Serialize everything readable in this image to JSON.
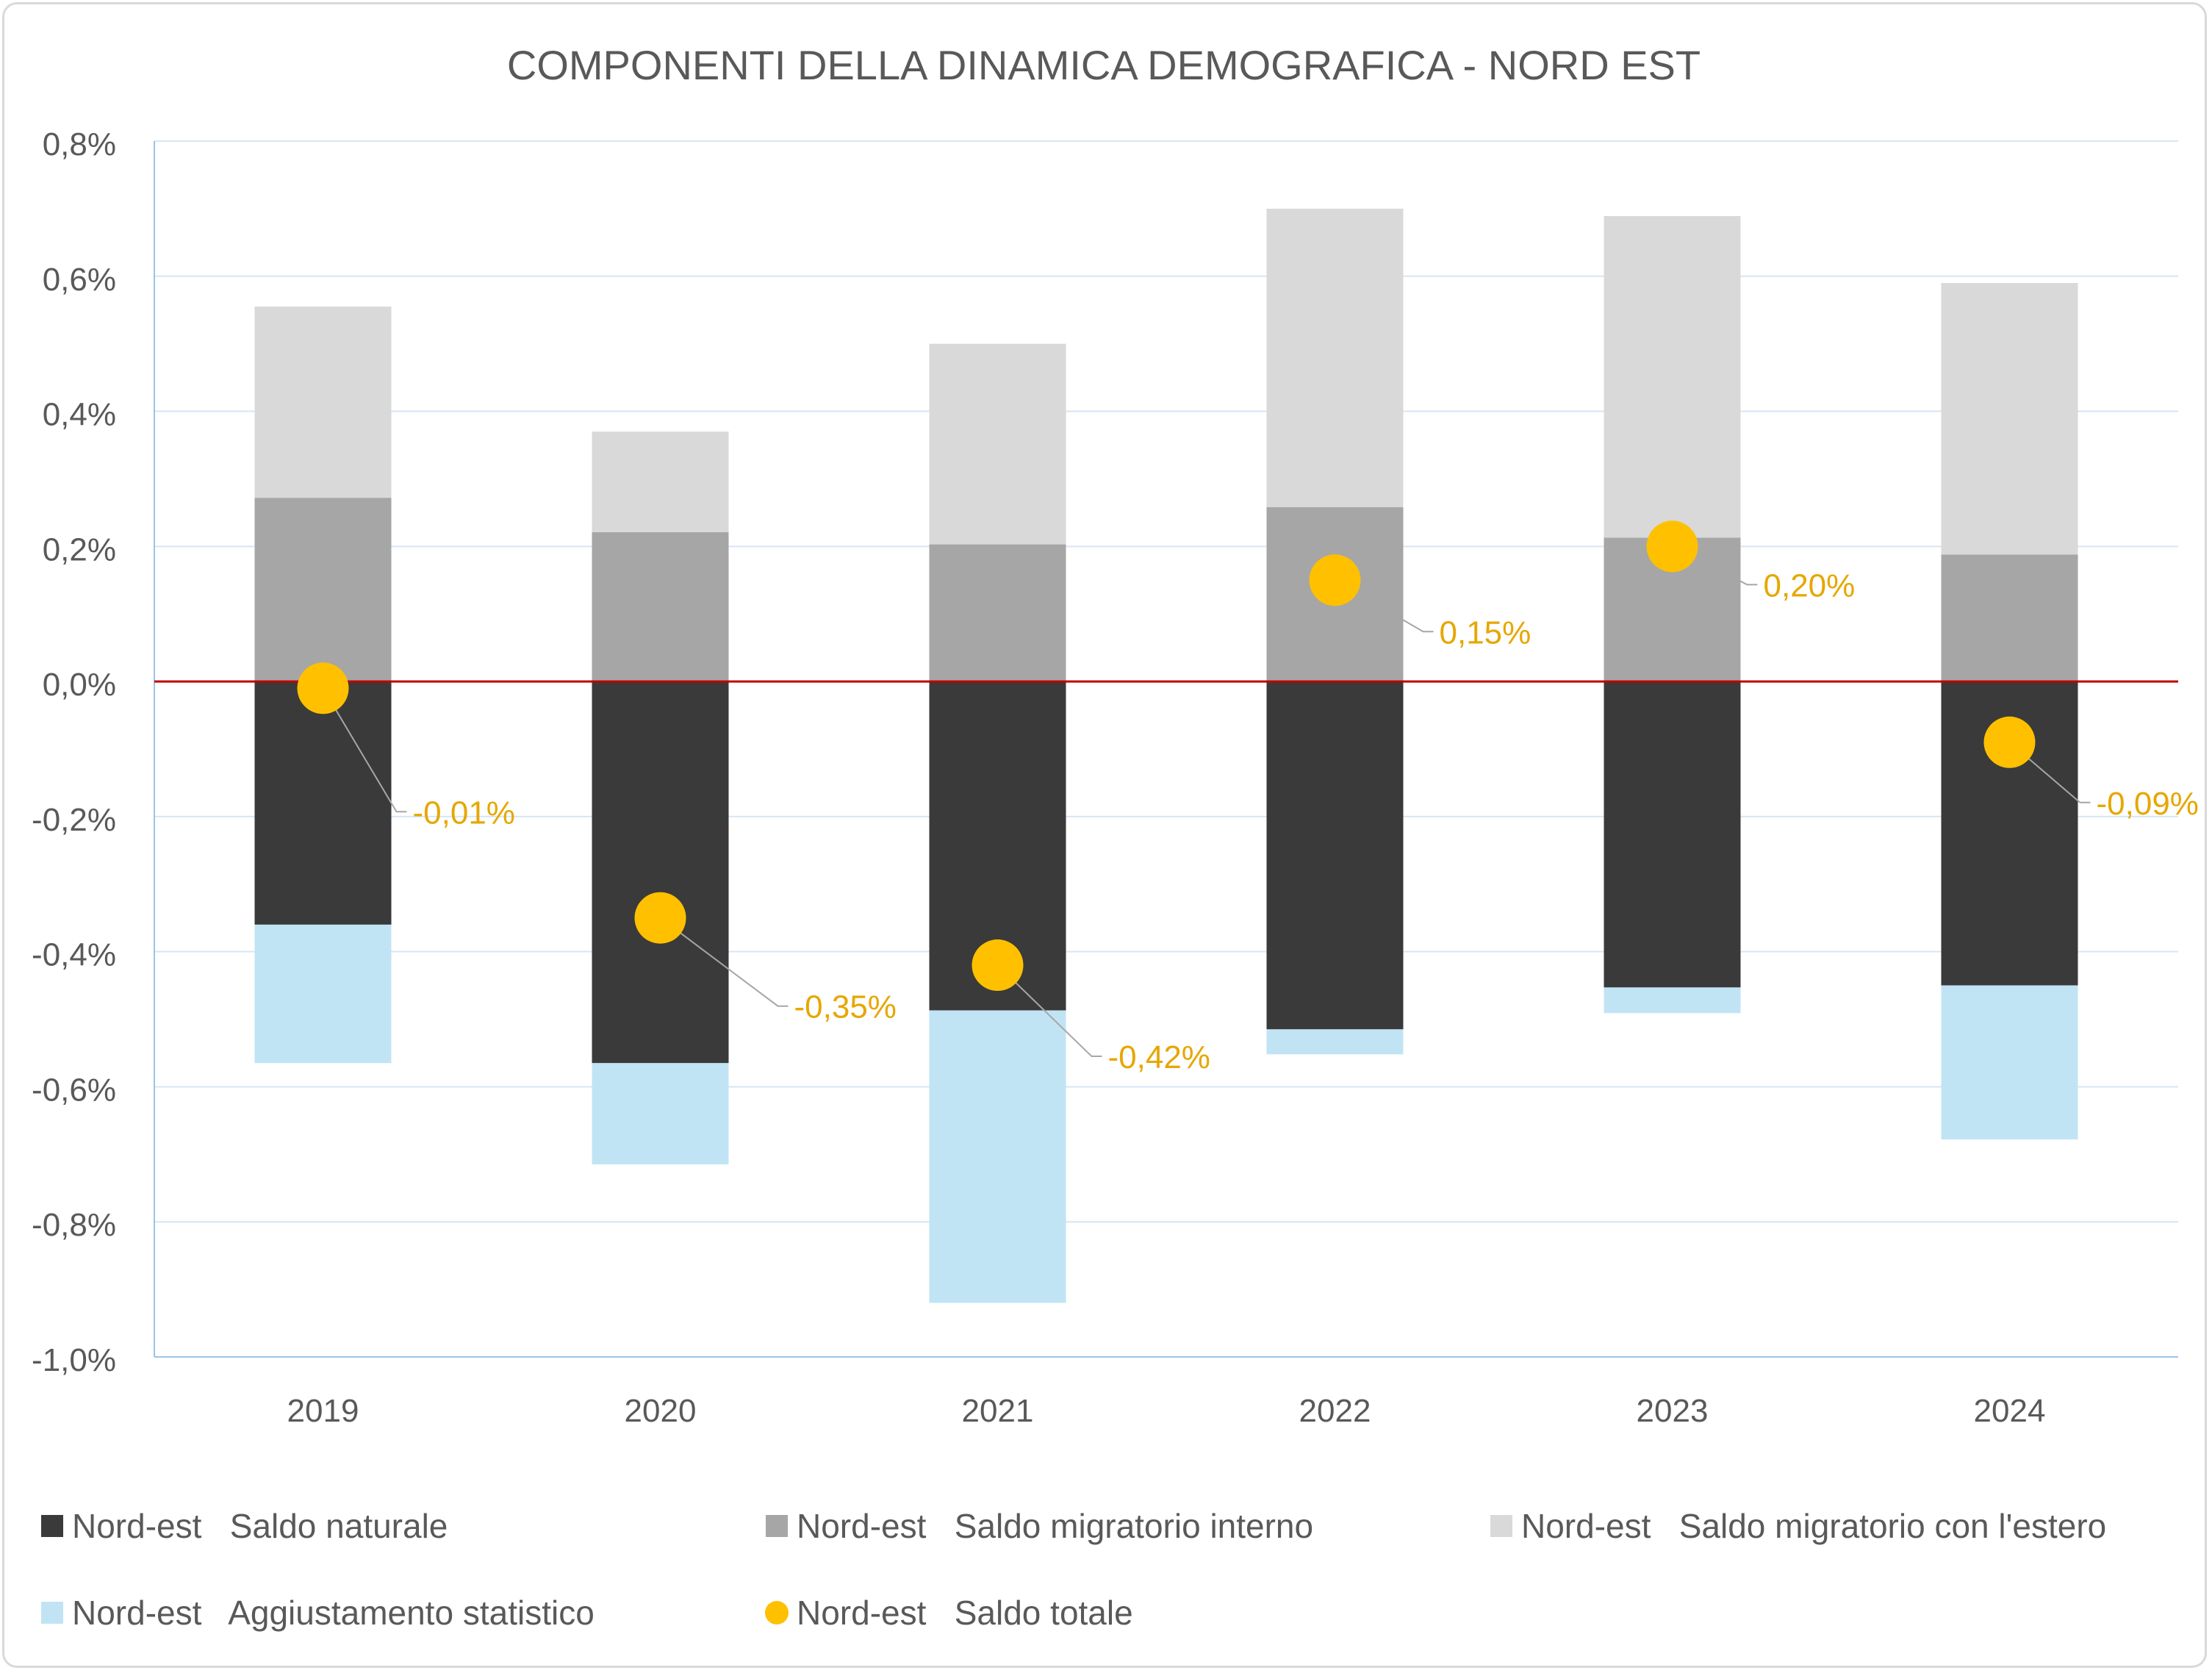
{
  "chart_data": {
    "type": "bar",
    "title": "COMPONENTI DELLA DINAMICA DEMOGRAFICA - NORD EST",
    "xlabel": "",
    "ylabel": "",
    "categories": [
      "2019",
      "2020",
      "2021",
      "2022",
      "2023",
      "2024"
    ],
    "ylim": [
      -1.0,
      0.8
    ],
    "yticks": [
      0.8,
      0.6,
      0.4,
      0.2,
      0.0,
      -0.2,
      -0.4,
      -0.6,
      -0.8,
      -1.0
    ],
    "ytick_labels": [
      "0,8%",
      "0,6%",
      "0,4%",
      "0,2%",
      "0,0%",
      "-0,2%",
      "-0,4%",
      "-0,6%",
      "-0,8%",
      "-1,0%"
    ],
    "stacked": true,
    "grid": true,
    "legend_position": "bottom",
    "series": [
      {
        "name": "Nord-est   Saldo naturale",
        "kind": "bar",
        "color": "#3a3a3a",
        "values": [
          -0.36,
          -0.565,
          -0.487,
          -0.515,
          -0.453,
          -0.45
        ]
      },
      {
        "name": "Nord-est   Saldo migratorio interno",
        "kind": "bar",
        "color": "#a6a6a6",
        "values": [
          0.272,
          0.221,
          0.203,
          0.258,
          0.213,
          0.188
        ]
      },
      {
        "name": "Nord-est   Saldo migratorio con l'estero",
        "kind": "bar",
        "color": "#d9d9d9",
        "values": [
          0.283,
          0.149,
          0.297,
          0.442,
          0.476,
          0.402
        ]
      },
      {
        "name": "Nord-est   Aggiustamento statistico",
        "kind": "bar",
        "color": "#c1e4f5",
        "values": [
          -0.205,
          -0.15,
          -0.433,
          -0.037,
          -0.038,
          -0.228
        ]
      },
      {
        "name": "Nord-est   Saldo totale",
        "kind": "point",
        "color": "#ffc000",
        "values": [
          -0.01,
          -0.35,
          -0.42,
          0.15,
          0.2,
          -0.09
        ],
        "labels": [
          "-0,01%",
          "-0,35%",
          "-0,42%",
          "0,15%",
          "0,20%",
          "-0,09%"
        ]
      }
    ],
    "colors": {
      "zero_line": "#c00000",
      "grid": "#d6e6f5",
      "axis": "#9dc3e6",
      "label_text": "#e6a700",
      "leader_line": "#a6a6a6",
      "tick_text": "#595959"
    }
  }
}
